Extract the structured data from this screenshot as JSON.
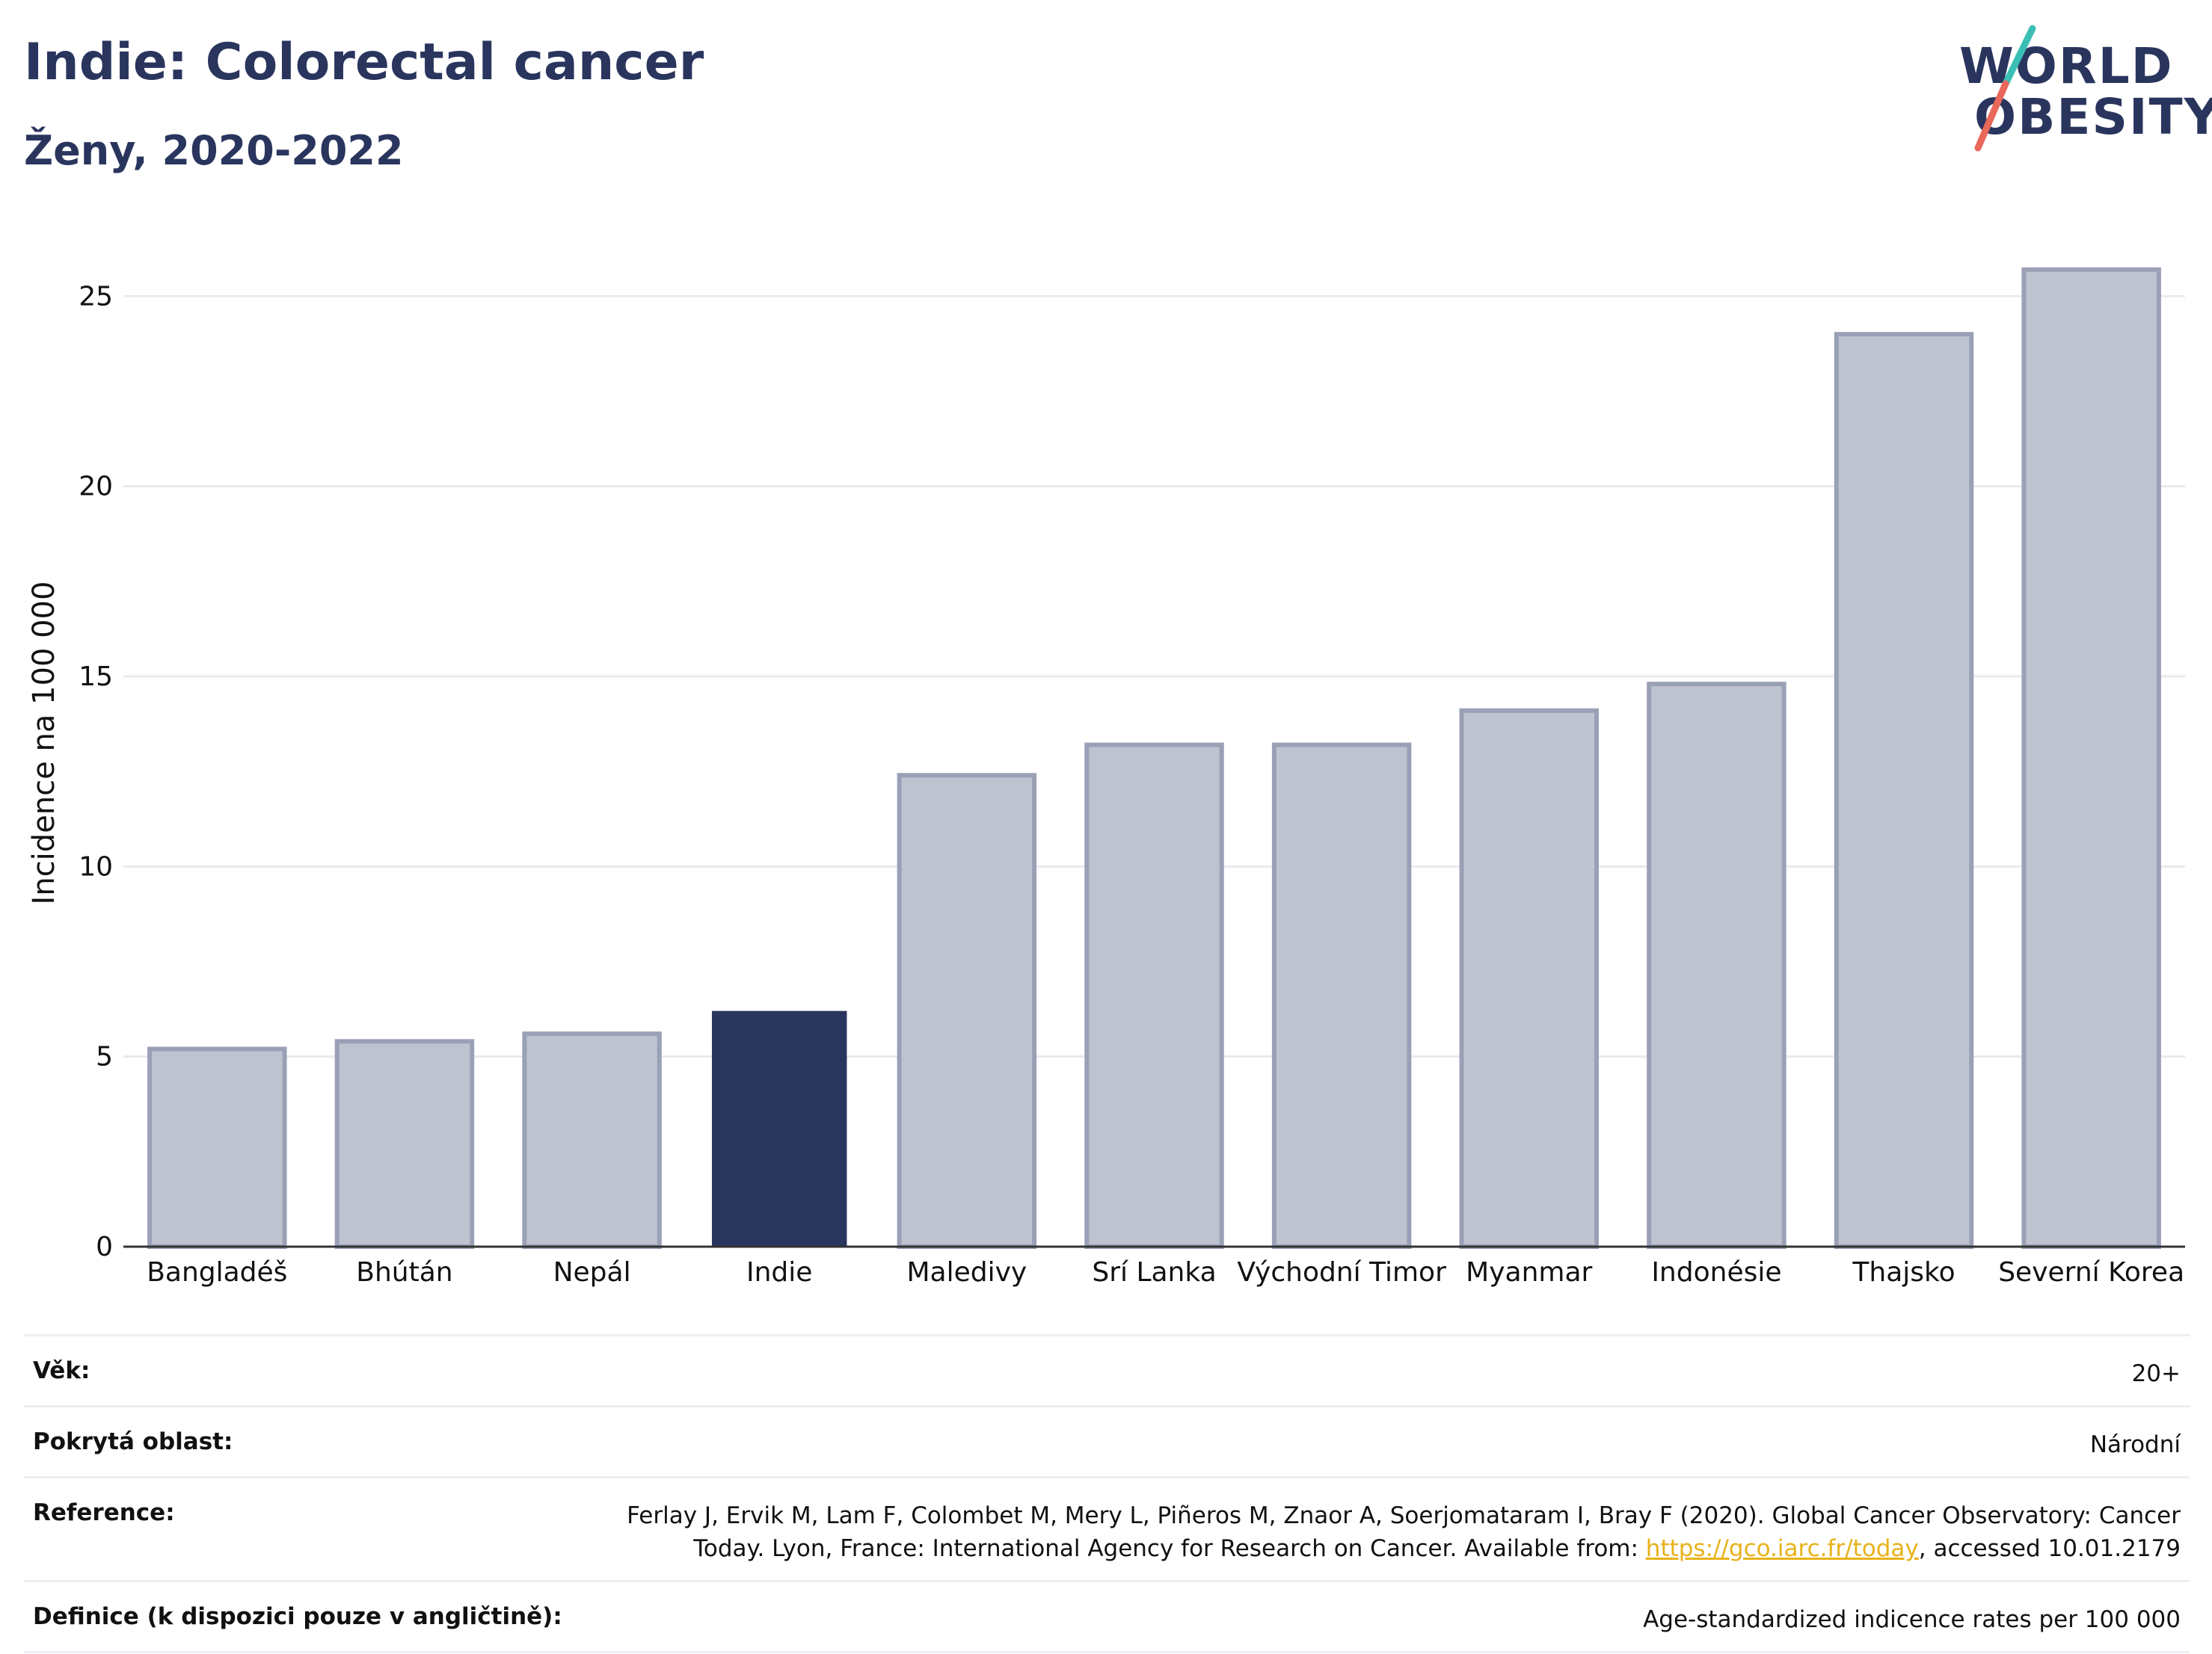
{
  "header": {
    "title": "Indie: Colorectal cancer",
    "subtitle": "Ženy, 2020-2022"
  },
  "logo": {
    "line1": "WORLD",
    "line2": "OBESITY",
    "accent_teal": "#3bbfb4",
    "accent_red": "#e9685a"
  },
  "colors": {
    "highlight": "#2a355e",
    "bar": "#bfc3d0",
    "bar_stroke": "#9aa0b6",
    "grid": "#e9eaef"
  },
  "chart_data": {
    "type": "bar",
    "title": "Indie: Colorectal cancer",
    "subtitle": "Ženy, 2020-2022",
    "xlabel": "",
    "ylabel": "Incidence na 100 000",
    "ylim": [
      0,
      26.5
    ],
    "yticks": [
      0,
      5,
      10,
      15,
      20,
      25
    ],
    "grid": true,
    "categories": [
      "Bangladéš",
      "Bhútán",
      "Nepál",
      "Indie",
      "Maledivy",
      "Srí Lanka",
      "Východní Timor",
      "Myanmar",
      "Indonésie",
      "Thajsko",
      "Severní Korea"
    ],
    "values": [
      5.2,
      5.4,
      5.6,
      6.2,
      12.4,
      13.2,
      13.2,
      14.1,
      14.8,
      24.0,
      25.7
    ],
    "highlight": "Indie"
  },
  "info": {
    "age_label": "Věk:",
    "age_value": "20+",
    "coverage_label": "Pokrytá oblast:",
    "coverage_value": "Národní",
    "reference_label": "Reference:",
    "reference_text_1": "Ferlay J, Ervik M, Lam F, Colombet M, Mery L, Piñeros M, Znaor A, Soerjomataram I, Bray F (2020). Global Cancer Observatory: Cancer Today. Lyon, France: International Agency for Research on Cancer. Available from: ",
    "reference_link": "https://gco.iarc.fr/today",
    "reference_text_2": ", accessed 10.01.2179",
    "definition_label": "Definice (k dispozici pouze v angličtině):",
    "definition_value": "Age-standardized indicence rates per 100 000"
  }
}
